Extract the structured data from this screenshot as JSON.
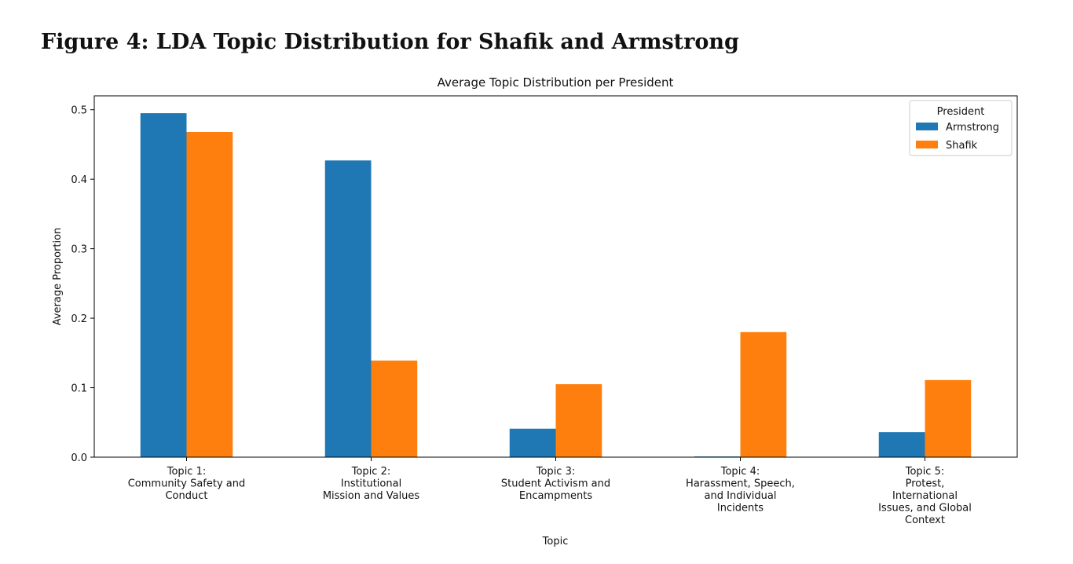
{
  "figure": {
    "title": "Figure 4: LDA Topic Distribution for Shafik and Armstrong"
  },
  "colors": {
    "armstrong": "#1f77b4",
    "shafik": "#ff7f0e"
  },
  "chart_data": {
    "type": "bar",
    "title": "Average Topic Distribution per President",
    "xlabel": "Topic",
    "ylabel": "Average Proportion",
    "ylim": [
      0,
      0.52
    ],
    "yticks": [
      0.0,
      0.1,
      0.2,
      0.3,
      0.4,
      0.5
    ],
    "ytick_labels": [
      "0.0",
      "0.1",
      "0.2",
      "0.3",
      "0.4",
      "0.5"
    ],
    "categories": [
      [
        "Topic 1:",
        "Community Safety and",
        "Conduct"
      ],
      [
        "Topic 2:",
        "Institutional",
        "Mission and Values"
      ],
      [
        "Topic 3:",
        "Student Activism and",
        "Encampments"
      ],
      [
        "Topic 4:",
        "Harassment, Speech,",
        "and Individual",
        "Incidents"
      ],
      [
        "Topic 5:",
        "Protest,",
        "International",
        "Issues, and Global",
        "Context"
      ]
    ],
    "series": [
      {
        "name": "Armstrong",
        "values": [
          0.495,
          0.427,
          0.041,
          0.001,
          0.036
        ]
      },
      {
        "name": "Shafik",
        "values": [
          0.468,
          0.139,
          0.105,
          0.18,
          0.111
        ]
      }
    ],
    "legend": {
      "title": "President",
      "placement": "top-right"
    },
    "grid": false
  }
}
